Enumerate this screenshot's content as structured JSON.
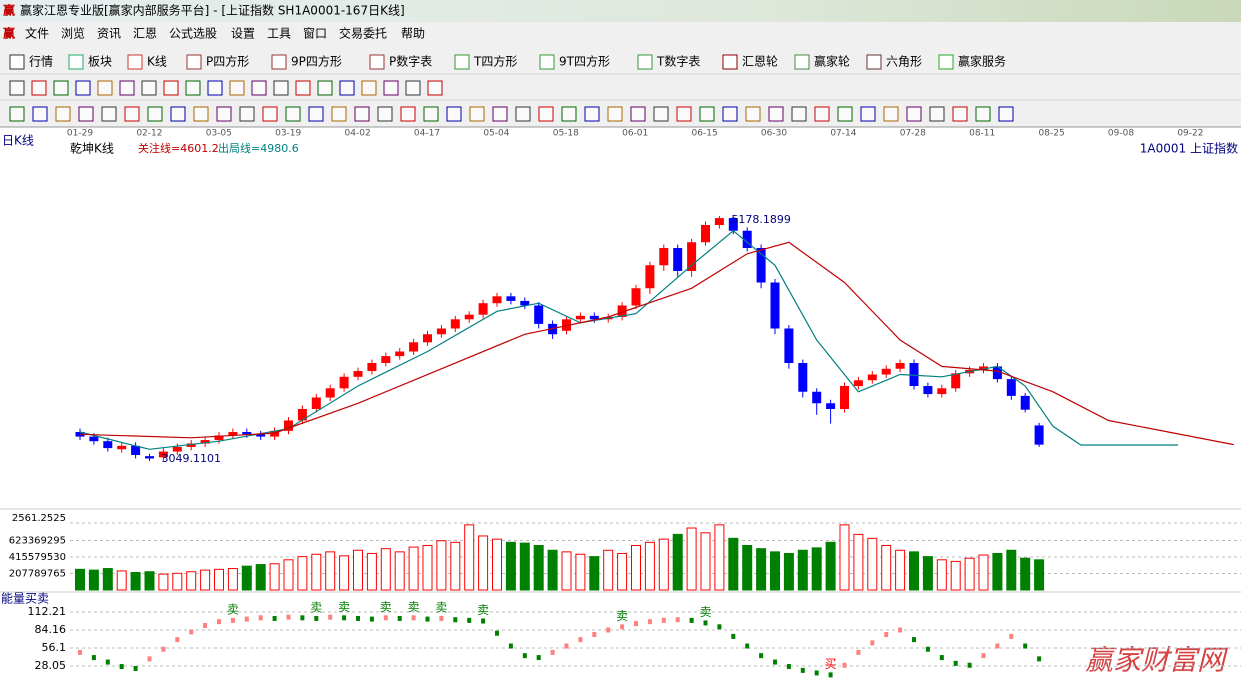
{
  "window": {
    "title": "赢家江恩专业版[赢家内部服务平台] - [上证指数  SH1A0001-167日K线]"
  },
  "menu": [
    "文件",
    "浏览",
    "资讯",
    "汇恩",
    "公式选股",
    "设置",
    "工具",
    "窗口",
    "交易委托",
    "帮助"
  ],
  "toolbar": [
    "行情",
    "板块",
    "K线",
    "P四方形",
    "9P四方形",
    "P数字表",
    "T四方形",
    "9T四方形",
    "T数字表",
    "汇恩轮",
    "赢家轮",
    "六角形",
    "赢家服务"
  ],
  "watermark": "赢家财富网",
  "chart_data": {
    "type": "candlestick",
    "period_label": "日K线",
    "indicator_name": "乾坤K线",
    "focus_line": "关注线=4601.2",
    "exit_line": "出局线=4980.6",
    "symbol": "1A0001  上证指数",
    "date_ticks": [
      "01-29",
      "02-12",
      "03-05",
      "03-19",
      "04-02",
      "04-17",
      "05-04",
      "05-18",
      "06-01",
      "06-15",
      "06-30",
      "07-14",
      "07-28",
      "08-11",
      "08-25",
      "09-08",
      "09-22"
    ],
    "ylim": [
      2700,
      5700
    ],
    "colors": {
      "up": "#ff0000",
      "down": "#0000ff",
      "volume_down": "#008000"
    },
    "candles": {
      "open": [
        3300,
        3260,
        3220,
        3150,
        3180,
        3090,
        3080,
        3130,
        3170,
        3200,
        3230,
        3270,
        3300,
        3280,
        3260,
        3310,
        3400,
        3500,
        3600,
        3680,
        3780,
        3830,
        3900,
        3960,
        4000,
        4080,
        4150,
        4200,
        4280,
        4320,
        4420,
        4480,
        4440,
        4400,
        4240,
        4180,
        4280,
        4310,
        4280,
        4300,
        4400,
        4550,
        4750,
        4900,
        4700,
        4950,
        5100,
        5160,
        5050,
        4900,
        4600,
        4200,
        3900,
        3650,
        3550,
        3500,
        3700,
        3750,
        3800,
        3850,
        3900,
        3700,
        3630,
        3680,
        3810,
        3840,
        3870,
        3760,
        3614,
        3357
      ],
      "close": [
        3260,
        3220,
        3160,
        3180,
        3100,
        3070,
        3130,
        3170,
        3200,
        3230,
        3270,
        3300,
        3280,
        3260,
        3310,
        3400,
        3500,
        3600,
        3680,
        3780,
        3830,
        3900,
        3960,
        4000,
        4080,
        4150,
        4200,
        4280,
        4320,
        4420,
        4480,
        4440,
        4400,
        4240,
        4150,
        4280,
        4310,
        4280,
        4300,
        4400,
        4550,
        4750,
        4900,
        4700,
        4950,
        5100,
        5160,
        5050,
        4900,
        4600,
        4200,
        3900,
        3650,
        3550,
        3500,
        3700,
        3750,
        3800,
        3850,
        3900,
        3700,
        3630,
        3680,
        3810,
        3840,
        3870,
        3760,
        3614,
        3494,
        3190
      ],
      "high": [
        3330,
        3290,
        3250,
        3210,
        3210,
        3110,
        3160,
        3200,
        3230,
        3260,
        3300,
        3330,
        3330,
        3310,
        3340,
        3430,
        3530,
        3630,
        3710,
        3810,
        3860,
        3930,
        3990,
        4030,
        4110,
        4180,
        4230,
        4310,
        4350,
        4450,
        4510,
        4510,
        4470,
        4430,
        4270,
        4300,
        4340,
        4340,
        4330,
        4430,
        4580,
        4780,
        4930,
        4930,
        4980,
        5130,
        5178.1899,
        5170,
        5080,
        4930,
        4630,
        4230,
        3930,
        3680,
        3580,
        3730,
        3780,
        3830,
        3880,
        3930,
        3930,
        3730,
        3710,
        3840,
        3870,
        3900,
        3900,
        3790,
        3640,
        3380
      ],
      "low": [
        3230,
        3190,
        3130,
        3120,
        3070,
        3049.1101,
        3050,
        3100,
        3140,
        3170,
        3200,
        3240,
        3250,
        3230,
        3230,
        3280,
        3370,
        3470,
        3570,
        3650,
        3750,
        3800,
        3870,
        3930,
        3970,
        4050,
        4120,
        4170,
        4250,
        4290,
        4390,
        4410,
        4370,
        4200,
        4110,
        4150,
        4250,
        4250,
        4250,
        4270,
        4370,
        4500,
        4700,
        4650,
        4650,
        4920,
        5070,
        5020,
        4870,
        4550,
        4150,
        3850,
        3600,
        3450,
        3373,
        3470,
        3670,
        3720,
        3770,
        3820,
        3670,
        3600,
        3600,
        3650,
        3780,
        3810,
        3730,
        3580,
        3470,
        3170
      ]
    },
    "high_label_index": 46,
    "low_label_index": 5,
    "lines": [
      {
        "color": "#008080",
        "x": [
          0,
          5,
          10,
          15,
          20,
          25,
          30,
          33,
          36,
          40,
          44,
          47,
          50,
          53,
          56,
          59,
          62,
          66,
          68,
          70,
          72,
          79
        ],
        "values": [
          3300,
          3150,
          3220,
          3330,
          3700,
          4000,
          4350,
          4420,
          4250,
          4330,
          4750,
          5050,
          4750,
          4100,
          3650,
          3800,
          3780,
          3870,
          3700,
          3350,
          3187,
          3187
        ]
      },
      {
        "color": "#c00000",
        "x": [
          0,
          8,
          14,
          20,
          26,
          32,
          38,
          44,
          48,
          51,
          55,
          59,
          62,
          66,
          70,
          74,
          83
        ],
        "values": [
          3280,
          3250,
          3290,
          3550,
          3850,
          4150,
          4300,
          4550,
          4850,
          4950,
          4600,
          4100,
          3870,
          3830,
          3650,
          3400,
          3190
        ]
      }
    ],
    "volume": {
      "top_label": "2561.2525",
      "ylim": [
        0,
        906000000
      ],
      "yticks": [
        207789765,
        415579530,
        623369295
      ],
      "values": [
        260000000,
        250000000,
        270000000,
        240000000,
        220000000,
        230000000,
        200000000,
        210000000,
        230000000,
        250000000,
        260000000,
        270000000,
        300000000,
        320000000,
        330000000,
        380000000,
        420000000,
        450000000,
        480000000,
        430000000,
        500000000,
        460000000,
        520000000,
        480000000,
        540000000,
        560000000,
        620000000,
        600000000,
        820000000,
        680000000,
        640000000,
        600000000,
        590000000,
        560000000,
        500000000,
        480000000,
        450000000,
        420000000,
        500000000,
        460000000,
        560000000,
        600000000,
        640000000,
        700000000,
        780000000,
        720000000,
        820000000,
        650000000,
        560000000,
        520000000,
        480000000,
        460000000,
        500000000,
        530000000,
        600000000,
        820000000,
        700000000,
        650000000,
        560000000,
        500000000,
        480000000,
        420000000,
        380000000,
        360000000,
        400000000,
        440000000,
        460000000,
        500000000,
        400000000,
        380000000
      ]
    },
    "energy": {
      "title": "能量买卖",
      "ylim": [
        0,
        131
      ],
      "yticks": [
        28.05,
        56.1,
        84.16,
        112.21
      ],
      "colors": {
        "rise": "#ff8080",
        "fall": "#008000"
      },
      "values": [
        50,
        42,
        35,
        28,
        25,
        40,
        55,
        70,
        82,
        92,
        98,
        100,
        102,
        104,
        103,
        105,
        104,
        103,
        105,
        104,
        103,
        102,
        104,
        103,
        104,
        102,
        103,
        101,
        100,
        99,
        80,
        60,
        45,
        42,
        50,
        60,
        70,
        78,
        85,
        90,
        95,
        98,
        100,
        101,
        100,
        96,
        90,
        75,
        60,
        45,
        35,
        28,
        22,
        18,
        15,
        30,
        50,
        65,
        78,
        85,
        70,
        55,
        42,
        33,
        30,
        45,
        60,
        75,
        60,
        40
      ],
      "signals": [
        {
          "text": "卖",
          "index": 11,
          "color": "#008000"
        },
        {
          "text": "卖",
          "index": 17,
          "color": "#008000"
        },
        {
          "text": "卖",
          "index": 19,
          "color": "#008000"
        },
        {
          "text": "卖",
          "index": 22,
          "color": "#008000"
        },
        {
          "text": "卖",
          "index": 24,
          "color": "#008000"
        },
        {
          "text": "卖",
          "index": 26,
          "color": "#008000"
        },
        {
          "text": "卖",
          "index": 29,
          "color": "#008000"
        },
        {
          "text": "卖",
          "index": 39,
          "color": "#008000"
        },
        {
          "text": "卖",
          "index": 45,
          "color": "#008000"
        },
        {
          "text": "买",
          "index": 54,
          "color": "#ff0000"
        }
      ]
    }
  }
}
